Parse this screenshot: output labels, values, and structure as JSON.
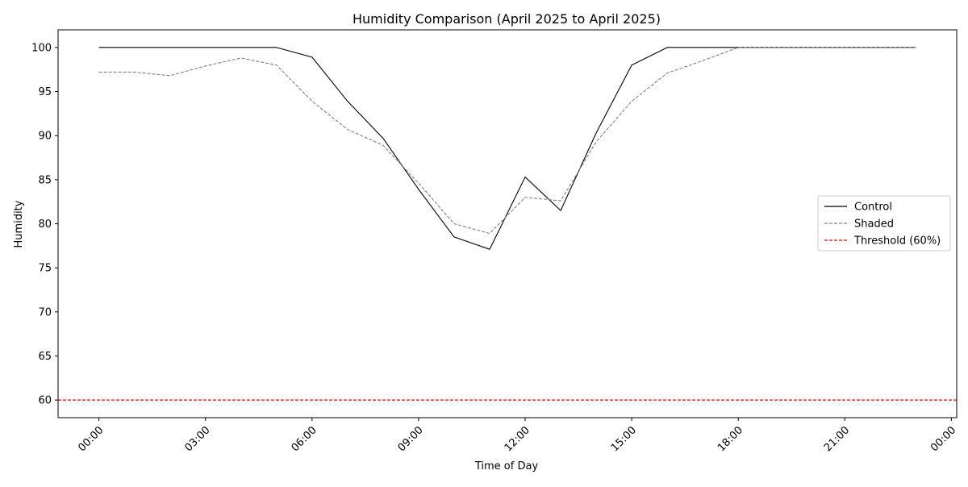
{
  "chart_data": {
    "type": "line",
    "title": "Humidity Comparison (April 2025 to April 2025)",
    "xlabel": "Time of Day",
    "ylabel": "Humidity",
    "x_unit": "hour of day",
    "xlim": [
      -1.15,
      24.15
    ],
    "ylim": [
      58,
      102
    ],
    "x_ticks": [
      0,
      3,
      6,
      9,
      12,
      15,
      18,
      21,
      24
    ],
    "x_tick_labels": [
      "00:00",
      "03:00",
      "06:00",
      "09:00",
      "12:00",
      "15:00",
      "18:00",
      "21:00",
      "00:00"
    ],
    "y_ticks": [
      60,
      65,
      70,
      75,
      80,
      85,
      90,
      95,
      100
    ],
    "y_tick_labels": [
      "60",
      "65",
      "70",
      "75",
      "80",
      "85",
      "90",
      "95",
      "100"
    ],
    "grid": false,
    "legend_position": "center-right",
    "x": [
      0,
      1,
      2,
      3,
      4,
      5,
      6,
      7,
      8,
      9,
      10,
      11,
      12,
      13,
      14,
      15,
      16,
      17,
      18,
      19,
      20,
      21,
      22,
      23
    ],
    "series": [
      {
        "name": "Control",
        "color": "#000000",
        "dash": "solid",
        "values": [
          100,
          100,
          100,
          100,
          100,
          100,
          98.9,
          93.9,
          89.7,
          83.9,
          78.5,
          77.1,
          85.3,
          81.5,
          90.3,
          98.0,
          100,
          100,
          100,
          100,
          100,
          100,
          100,
          100
        ]
      },
      {
        "name": "Shaded",
        "color": "#808080",
        "dash": "dashed",
        "values": [
          97.2,
          97.2,
          96.8,
          97.9,
          98.8,
          98.0,
          93.9,
          90.7,
          88.9,
          84.6,
          80.0,
          78.9,
          83.0,
          82.6,
          89.3,
          93.9,
          97.1,
          98.5,
          100,
          100,
          100,
          100,
          100,
          100
        ]
      }
    ],
    "reference_lines": [
      {
        "name": "Threshold (60%)",
        "y": 60,
        "color": "#ff0000",
        "dash": "dashed"
      }
    ]
  }
}
